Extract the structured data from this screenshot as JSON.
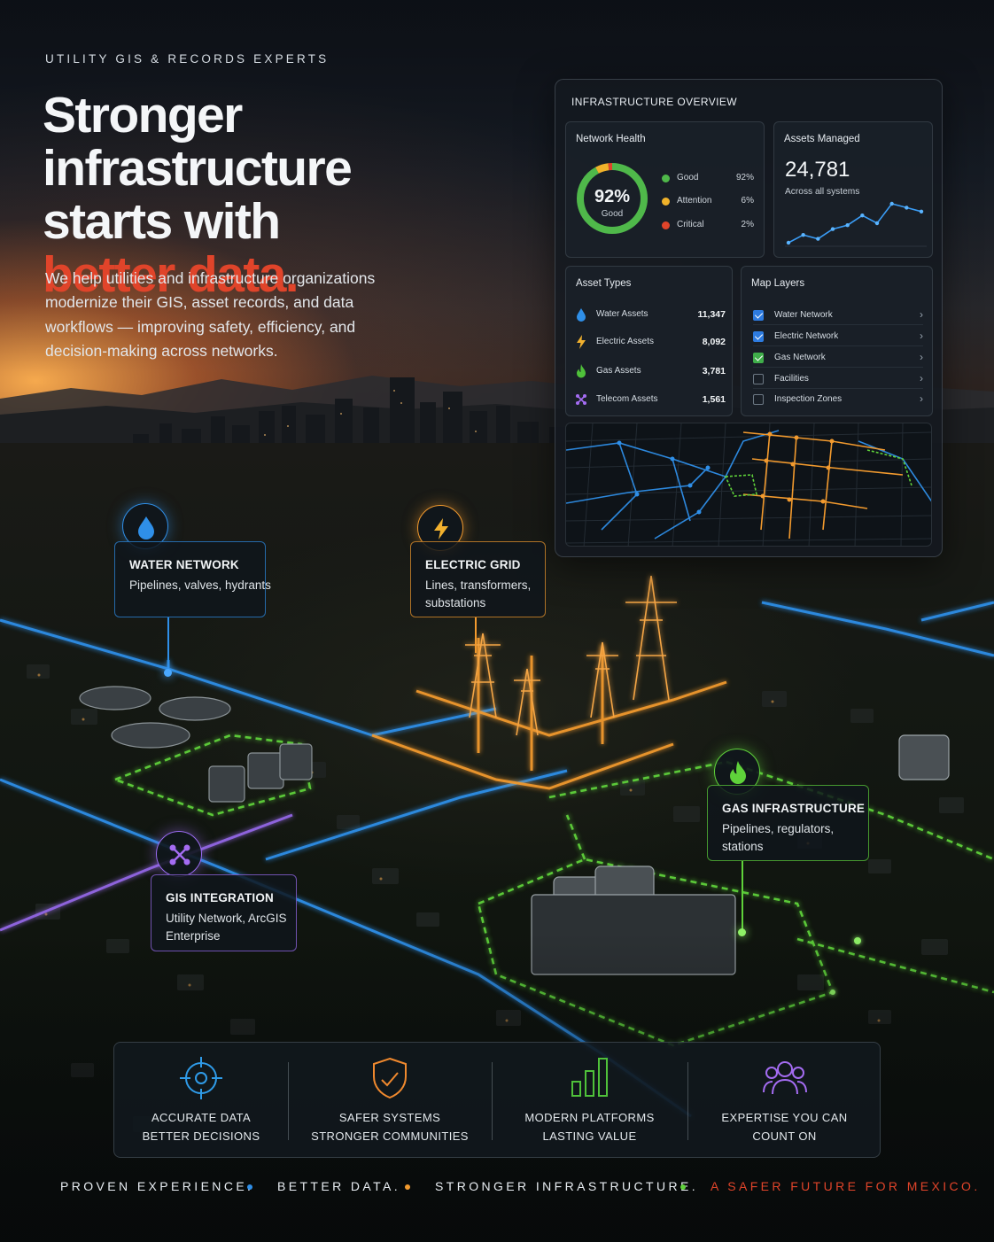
{
  "eyebrow": "UTILITY GIS & RECORDS EXPERTS",
  "headline": {
    "line1": "Stronger infrastructure",
    "line2": "starts with",
    "accent": "better data."
  },
  "lede": "We help utilities and infrastructure organizations modernize their GIS, asset records, and data workflows — improving safety, efficiency, and decision-making across networks.",
  "colors": {
    "accent_red": "#e0442a",
    "water_blue": "#2f8fe8",
    "electric_orange": "#f29a2e",
    "gas_green": "#5fd23a",
    "gis_purple": "#9b6cf2"
  },
  "dashboard": {
    "title": "INFRASTRUCTURE OVERVIEW",
    "network_health": {
      "title": "Network Health",
      "value": "92%",
      "value_label": "Good",
      "legend": [
        {
          "label": "Good",
          "pct": "92%",
          "color": "#4fb84a"
        },
        {
          "label": "Attention",
          "pct": "6%",
          "color": "#f0b22a"
        },
        {
          "label": "Critical",
          "pct": "2%",
          "color": "#e0442a"
        }
      ]
    },
    "assets_managed": {
      "title": "Assets Managed",
      "value": "24,781",
      "note": "Across all systems",
      "trend": [
        2,
        6,
        4,
        9,
        11,
        16,
        12,
        22,
        20,
        18
      ]
    },
    "asset_types": {
      "title": "Asset Types",
      "rows": [
        {
          "label": "Water Assets",
          "value": "11,347",
          "icon": "water-drop-icon"
        },
        {
          "label": "Electric Assets",
          "value": "8,092",
          "icon": "lightning-icon"
        },
        {
          "label": "Gas Assets",
          "value": "3,781",
          "icon": "flame-icon"
        },
        {
          "label": "Telecom Assets",
          "value": "1,561",
          "icon": "network-icon"
        }
      ]
    },
    "map_layers": {
      "title": "Map Layers",
      "rows": [
        {
          "label": "Water Network",
          "checked": true
        },
        {
          "label": "Electric Network",
          "checked": true
        },
        {
          "label": "Gas Network",
          "checked": true
        },
        {
          "label": "Facilities",
          "checked": false
        },
        {
          "label": "Inspection Zones",
          "checked": false
        }
      ]
    }
  },
  "callouts": {
    "water": {
      "title": "WATER NETWORK",
      "desc": "Pipelines, valves, hydrants",
      "icon": "water-drop-icon"
    },
    "electric": {
      "title": "ELECTRIC GRID",
      "desc": "Lines, transformers, substations",
      "icon": "lightning-icon"
    },
    "gas": {
      "title": "GAS INFRASTRUCTURE",
      "desc": "Pipelines, regulators, stations",
      "icon": "flame-icon"
    },
    "gis": {
      "title": "GIS INTEGRATION",
      "desc": "Utility Network, ArcGIS Enterprise",
      "icon": "network-icon"
    }
  },
  "benefits": [
    {
      "line1": "ACCURATE DATA",
      "line2": "BETTER DECISIONS",
      "icon": "crosshair-icon"
    },
    {
      "line1": "SAFER SYSTEMS",
      "line2": "STRONGER COMMUNITIES",
      "icon": "shield-check-icon"
    },
    {
      "line1": "MODERN PLATFORMS",
      "line2": "LASTING VALUE",
      "icon": "bar-chart-icon"
    },
    {
      "line1": "EXPERTISE YOU CAN",
      "line2": "COUNT ON",
      "icon": "team-icon"
    }
  ],
  "footer": {
    "seg1": "PROVEN EXPERIENCE.",
    "seg2": "BETTER DATA.",
    "seg3": "STRONGER INFRASTRUCTURE.",
    "seg4": "A SAFER FUTURE FOR MEXICO."
  }
}
